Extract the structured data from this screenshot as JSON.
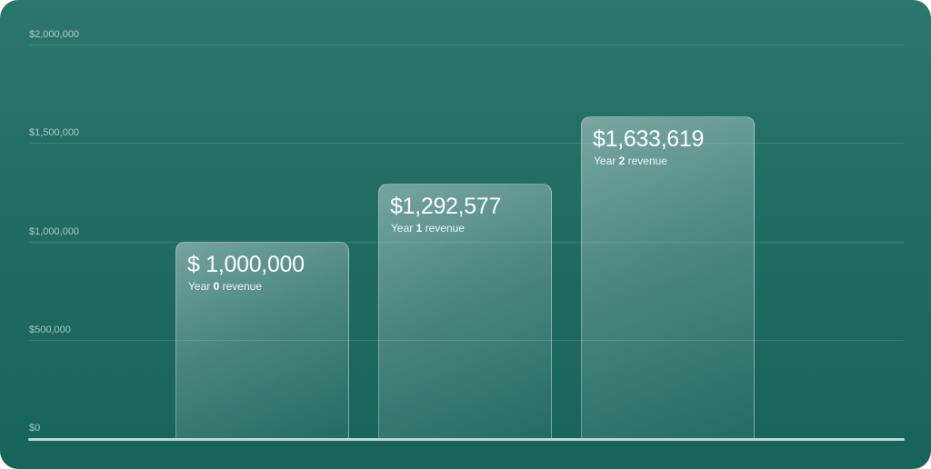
{
  "chart_data": {
    "type": "bar",
    "categories": [
      "Year 0",
      "Year 1",
      "Year 2"
    ],
    "values": [
      1000000,
      1292577,
      1633619
    ],
    "value_labels": [
      "$ 1,000,000",
      "$1,292,577",
      "$1,633,619"
    ],
    "bar_labels": [
      {
        "prefix": "Year ",
        "year": "0",
        "suffix": " revenue"
      },
      {
        "prefix": "Year ",
        "year": "1",
        "suffix": " revenue"
      },
      {
        "prefix": "Year ",
        "year": "2",
        "suffix": " revenue"
      }
    ],
    "y_ticks": [
      {
        "value": 2000000,
        "label": "$2,000,000"
      },
      {
        "value": 1500000,
        "label": "$1,500,000"
      },
      {
        "value": 1000000,
        "label": "$1,000,000"
      },
      {
        "value": 500000,
        "label": "$500,000"
      },
      {
        "value": 0,
        "label": "$0"
      }
    ],
    "ylim": [
      0,
      2000000
    ],
    "grid": true,
    "title": "",
    "xlabel": "",
    "ylabel": ""
  },
  "colors": {
    "background_top": "#2c766c",
    "background_bottom": "#17645a",
    "text": "#ffffff"
  }
}
